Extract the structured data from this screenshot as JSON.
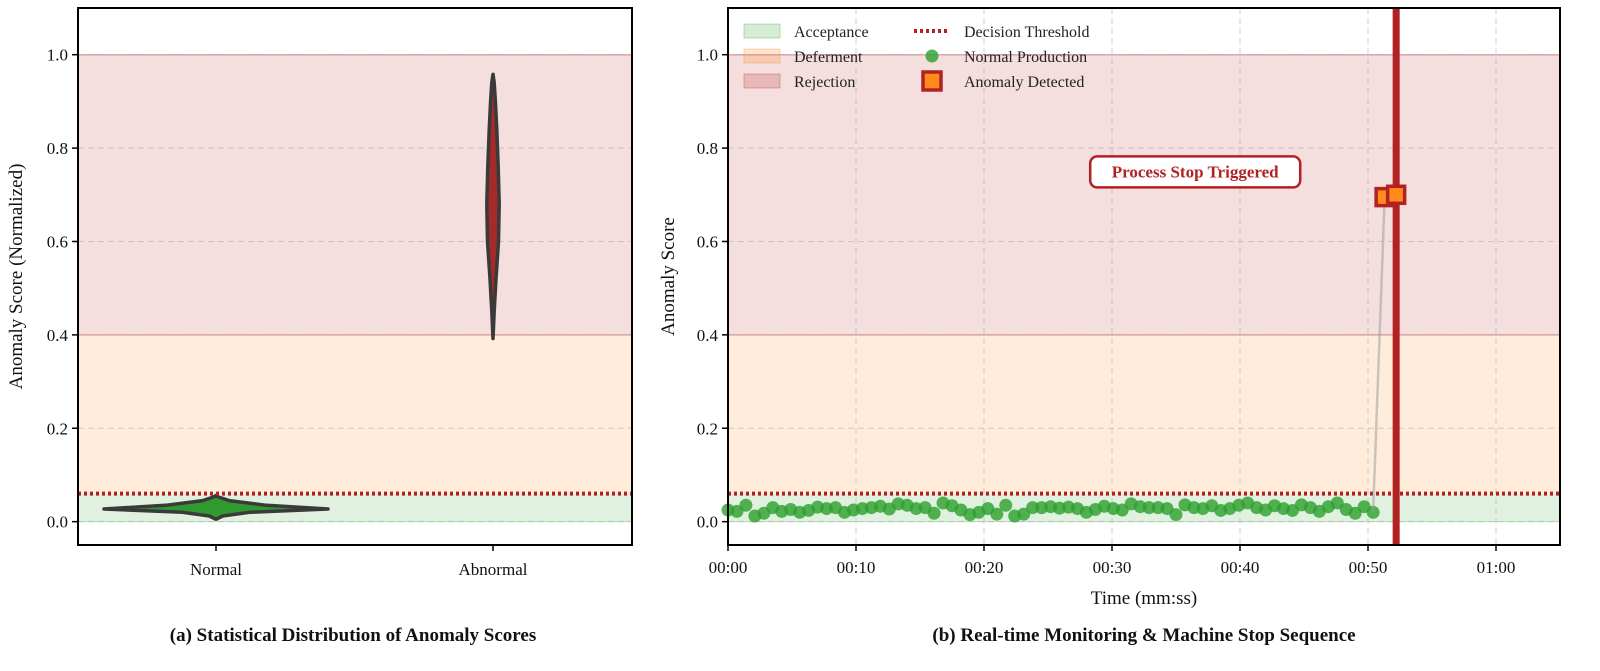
{
  "colors": {
    "acceptance": "#2ca02c",
    "deferment": "#ff7f0e",
    "rejection": "#b22222",
    "threshold": "#b22222",
    "normal_point": "#2ca02c",
    "anomaly_fill": "#ff8c1a",
    "anomaly_edge": "#b22222",
    "violin_normal": "#2f9a2f",
    "violin_abnormal": "#a52a2a"
  },
  "chart_data": [
    {
      "type": "violin",
      "caption": "(a) Statistical Distribution of Anomaly Scores",
      "xlabel": "",
      "ylabel": "Anomaly Score (Normalized)",
      "categories": [
        "Normal",
        "Abnormal"
      ],
      "ylim": [
        -0.05,
        1.1
      ],
      "yticks": [
        "0.0",
        "0.2",
        "0.4",
        "0.6",
        "0.8",
        "1.0"
      ],
      "grid": true,
      "zones": {
        "acceptance": [
          0,
          0.06
        ],
        "deferment": [
          0.06,
          0.4
        ],
        "rejection": [
          0.4,
          1.0
        ]
      },
      "threshold": 0.06,
      "violins": [
        {
          "category": "Normal",
          "color": "violin_normal",
          "profile": [
            [
              0.005,
              0.0
            ],
            [
              0.012,
              0.06
            ],
            [
              0.02,
              0.3
            ],
            [
              0.027,
              1.0
            ],
            [
              0.035,
              0.45
            ],
            [
              0.045,
              0.12
            ],
            [
              0.053,
              0.02
            ],
            [
              0.056,
              0.0
            ]
          ]
        },
        {
          "category": "Abnormal",
          "color": "violin_abnormal",
          "profile": [
            [
              0.392,
              0.0
            ],
            [
              0.45,
              0.12
            ],
            [
              0.52,
              0.3
            ],
            [
              0.6,
              0.55
            ],
            [
              0.68,
              0.62
            ],
            [
              0.76,
              0.52
            ],
            [
              0.84,
              0.38
            ],
            [
              0.9,
              0.24
            ],
            [
              0.94,
              0.12
            ],
            [
              0.958,
              0.0
            ]
          ]
        }
      ]
    },
    {
      "type": "scatter",
      "caption": "(b) Real-time Monitoring & Machine Stop Sequence",
      "xlabel": "Time (mm:ss)",
      "ylabel": "Anomaly Score",
      "xlim": [
        0,
        65
      ],
      "ylim": [
        -0.05,
        1.1
      ],
      "xticks": [
        {
          "value": 0,
          "label": "00:00"
        },
        {
          "value": 10,
          "label": "00:10"
        },
        {
          "value": 20,
          "label": "00:20"
        },
        {
          "value": 30,
          "label": "00:30"
        },
        {
          "value": 40,
          "label": "00:40"
        },
        {
          "value": 50,
          "label": "00:50"
        },
        {
          "value": 60,
          "label": "01:00"
        }
      ],
      "yticks": [
        "0.0",
        "0.2",
        "0.4",
        "0.6",
        "0.8",
        "1.0"
      ],
      "grid": true,
      "threshold": 0.06,
      "stop_time": 52.2,
      "legend": {
        "placement": "top-left",
        "entries": [
          {
            "label": "Acceptance",
            "kind": "patch",
            "color": "acceptance"
          },
          {
            "label": "Deferment",
            "kind": "patch",
            "color": "deferment"
          },
          {
            "label": "Rejection",
            "kind": "patch",
            "color": "rejection"
          },
          {
            "label": "Decision Threshold",
            "kind": "dotted-line",
            "color": "threshold"
          },
          {
            "label": "Normal Production",
            "kind": "circle",
            "color": "normal_point"
          },
          {
            "label": "Anomaly Detected",
            "kind": "square",
            "color": "anomaly_fill"
          }
        ]
      },
      "annotation": {
        "text": "Process Stop Triggered",
        "x": 36.5,
        "y": 0.75
      },
      "series": [
        {
          "name": "Normal Production",
          "x": [
            0,
            0.7,
            1.4,
            2.1,
            2.8,
            3.5,
            4.2,
            4.9,
            5.6,
            6.3,
            7.0,
            7.7,
            8.4,
            9.1,
            9.8,
            10.5,
            11.2,
            11.9,
            12.6,
            13.3,
            14.0,
            14.7,
            15.4,
            16.1,
            16.8,
            17.5,
            18.2,
            18.9,
            19.6,
            20.3,
            21.0,
            21.7,
            22.4,
            23.1,
            23.8,
            24.5,
            25.2,
            25.9,
            26.6,
            27.3,
            28.0,
            28.7,
            29.4,
            30.1,
            30.8,
            31.5,
            32.2,
            32.9,
            33.6,
            34.3,
            35.0,
            35.7,
            36.4,
            37.1,
            37.8,
            38.5,
            39.2,
            39.9,
            40.6,
            41.3,
            42.0,
            42.7,
            43.4,
            44.1,
            44.8,
            45.5,
            46.2,
            46.9,
            47.6,
            48.3,
            49.0,
            49.7,
            50.4
          ],
          "y": [
            0.025,
            0.022,
            0.035,
            0.012,
            0.018,
            0.03,
            0.022,
            0.026,
            0.02,
            0.024,
            0.031,
            0.028,
            0.03,
            0.02,
            0.025,
            0.028,
            0.03,
            0.033,
            0.027,
            0.038,
            0.035,
            0.028,
            0.03,
            0.018,
            0.04,
            0.034,
            0.025,
            0.015,
            0.02,
            0.028,
            0.016,
            0.035,
            0.012,
            0.016,
            0.03,
            0.03,
            0.032,
            0.029,
            0.031,
            0.028,
            0.02,
            0.026,
            0.033,
            0.028,
            0.025,
            0.038,
            0.032,
            0.03,
            0.03,
            0.028,
            0.015,
            0.036,
            0.03,
            0.028,
            0.034,
            0.024,
            0.028,
            0.035,
            0.04,
            0.03,
            0.025,
            0.034,
            0.028,
            0.024,
            0.036,
            0.03,
            0.022,
            0.032,
            0.04,
            0.026,
            0.018,
            0.032,
            0.02
          ],
          "color": "normal_point"
        },
        {
          "name": "Anomaly Detected",
          "x": [
            51.3,
            52.2
          ],
          "y": [
            0.695,
            0.7
          ],
          "color": "anomaly_fill"
        }
      ]
    }
  ]
}
